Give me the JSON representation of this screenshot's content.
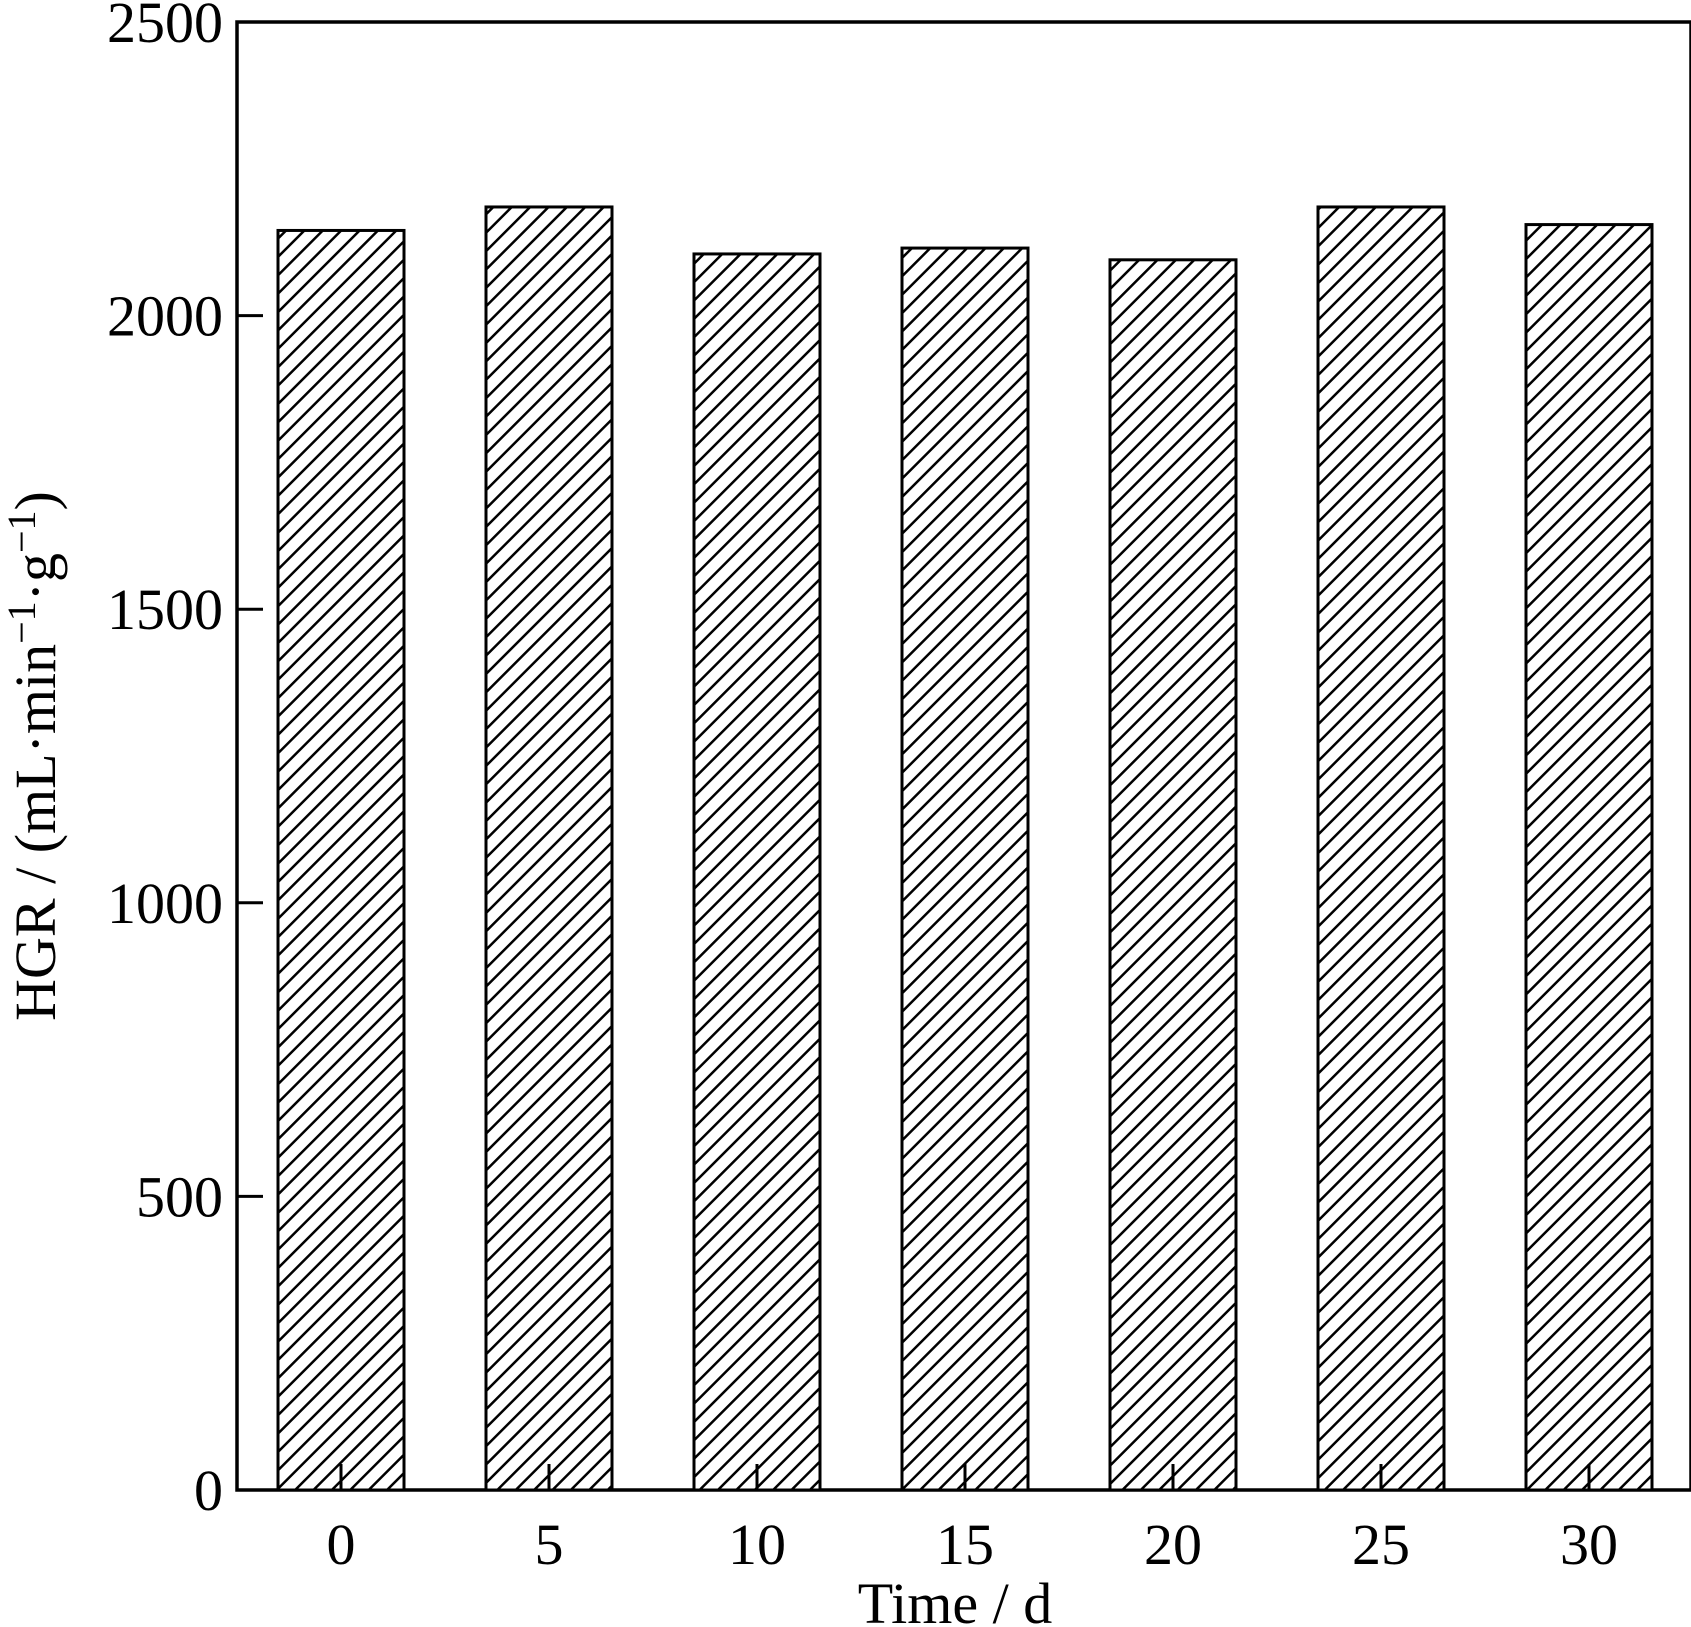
{
  "chart_data": {
    "type": "bar",
    "title": "",
    "xlabel": "Time / d",
    "ylabel": "HGR / (mL·min",
    "ylabel_sup1": "−1",
    "ylabel_mid": "·g",
    "ylabel_sup2": "−1",
    "ylabel_end": ")",
    "categories": [
      "0",
      "5",
      "10",
      "15",
      "20",
      "25",
      "30"
    ],
    "values": [
      2145,
      2185,
      2105,
      2115,
      2095,
      2185,
      2155
    ],
    "ylim": [
      0,
      2500
    ],
    "yticks": [
      0,
      500,
      1000,
      1500,
      2000,
      2500
    ],
    "ytick_labels": [
      "0",
      "500",
      "1000",
      "1500",
      "2000",
      "2500"
    ],
    "grid": false,
    "bar_fill": "hatched",
    "colors": {
      "bar_stroke": "#000000",
      "hatch": "#000000",
      "background": "#ffffff"
    }
  }
}
